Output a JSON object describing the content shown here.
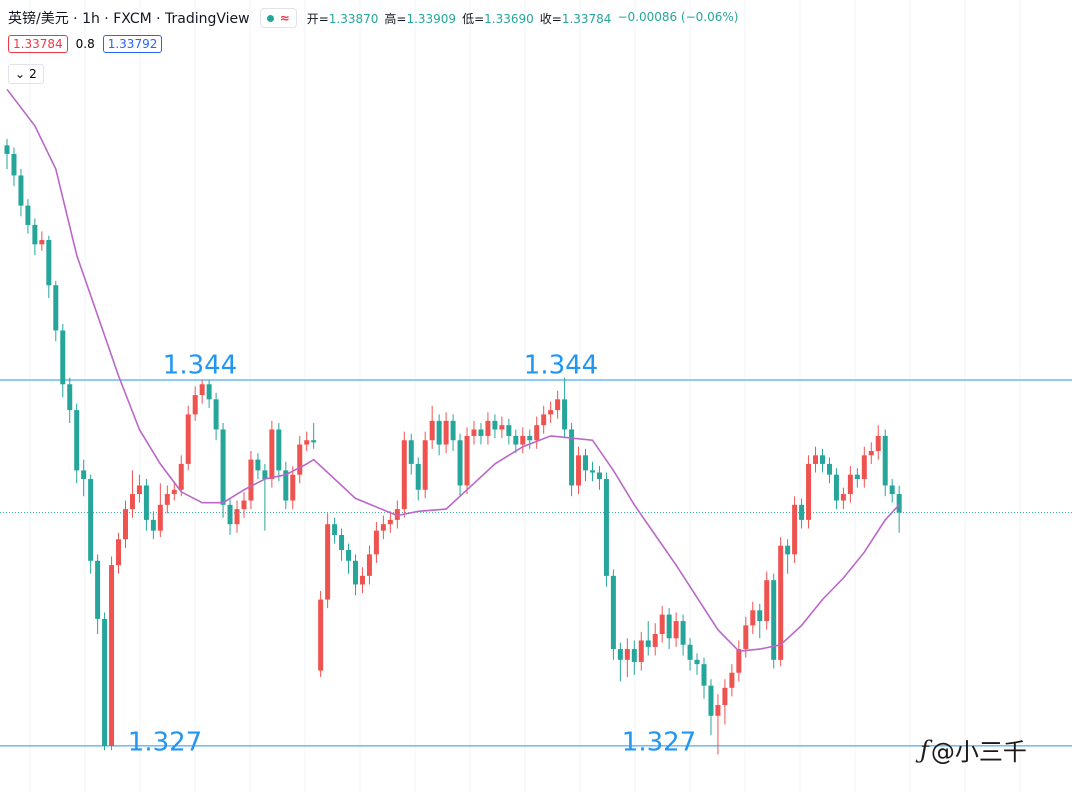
{
  "chart_data": {
    "type": "candlestick",
    "title": "英镑/美元 · 1h · FXCM · TradingView",
    "ohlc_legend": [
      {
        "label": "开=",
        "value": "1.33870"
      },
      {
        "label": "高=",
        "value": "1.33909"
      },
      {
        "label": "低=",
        "value": "1.33690"
      },
      {
        "label": "收=",
        "value": "1.33784"
      },
      {
        "label": "",
        "value": "−0.00086 (−0.06%)"
      }
    ],
    "bid": "1.33784",
    "spread": "0.8",
    "ask": "1.33792",
    "indicator_count": "2",
    "watermark": "@小三千",
    "up_color": "#ef5350",
    "down_color": "#26a69a",
    "ma_color": "#ba68c8",
    "level_color": "#2196f3",
    "ylim": [
      1.32486,
      1.36165
    ],
    "candles": [
      [
        1.3549,
        1.3552,
        1.3538,
        1.3545
      ],
      [
        1.3545,
        1.3548,
        1.353,
        1.3535
      ],
      [
        1.3535,
        1.3538,
        1.3516,
        1.3521
      ],
      [
        1.3521,
        1.3524,
        1.3508,
        1.3512
      ],
      [
        1.3512,
        1.3515,
        1.3498,
        1.3503
      ],
      [
        1.3503,
        1.3509,
        1.35,
        1.3505
      ],
      [
        1.3505,
        1.3507,
        1.3478,
        1.3484
      ],
      [
        1.3484,
        1.3486,
        1.3458,
        1.3463
      ],
      [
        1.3463,
        1.3466,
        1.3432,
        1.3438
      ],
      [
        1.3438,
        1.3441,
        1.342,
        1.3426
      ],
      [
        1.3426,
        1.3429,
        1.3392,
        1.3398
      ],
      [
        1.3398,
        1.3403,
        1.3386,
        1.3394
      ],
      [
        1.3394,
        1.3396,
        1.335,
        1.3356
      ],
      [
        1.3356,
        1.3359,
        1.3322,
        1.3329
      ],
      [
        1.3329,
        1.3332,
        1.3268,
        1.327
      ],
      [
        1.327,
        1.3358,
        1.3268,
        1.3354
      ],
      [
        1.3354,
        1.3369,
        1.335,
        1.3366
      ],
      [
        1.3366,
        1.3384,
        1.3362,
        1.338
      ],
      [
        1.338,
        1.3398,
        1.3376,
        1.3387
      ],
      [
        1.3387,
        1.3396,
        1.3383,
        1.3391
      ],
      [
        1.3391,
        1.3394,
        1.337,
        1.3375
      ],
      [
        1.3375,
        1.3379,
        1.3366,
        1.337
      ],
      [
        1.337,
        1.3392,
        1.3367,
        1.3382
      ],
      [
        1.3382,
        1.3391,
        1.3378,
        1.3387
      ],
      [
        1.3387,
        1.3393,
        1.3384,
        1.3389
      ],
      [
        1.3389,
        1.3405,
        1.3386,
        1.3401
      ],
      [
        1.3401,
        1.3428,
        1.3398,
        1.3424
      ],
      [
        1.3424,
        1.3437,
        1.3421,
        1.3433
      ],
      [
        1.3433,
        1.344,
        1.3429,
        1.3438
      ],
      [
        1.3438,
        1.344,
        1.3427,
        1.3431
      ],
      [
        1.3431,
        1.3434,
        1.3412,
        1.3417
      ],
      [
        1.3417,
        1.342,
        1.3376,
        1.3382
      ],
      [
        1.3382,
        1.3385,
        1.3368,
        1.3373
      ],
      [
        1.3373,
        1.3384,
        1.3369,
        1.338
      ],
      [
        1.338,
        1.3388,
        1.3376,
        1.3384
      ],
      [
        1.3384,
        1.3407,
        1.338,
        1.3403
      ],
      [
        1.3403,
        1.3406,
        1.3394,
        1.3398
      ],
      [
        1.3398,
        1.3401,
        1.337,
        1.3394
      ],
      [
        1.3394,
        1.3421,
        1.339,
        1.3417
      ],
      [
        1.3417,
        1.342,
        1.3393,
        1.3398
      ],
      [
        1.3398,
        1.3402,
        1.338,
        1.3384
      ],
      [
        1.3384,
        1.34,
        1.338,
        1.3396
      ],
      [
        1.3396,
        1.3414,
        1.3392,
        1.341
      ],
      [
        1.341,
        1.3416,
        1.3407,
        1.3412
      ],
      [
        1.3412,
        1.342,
        1.3408,
        1.3411
      ],
      [
        1.3305,
        1.3342,
        1.3302,
        1.3338
      ],
      [
        1.3338,
        1.3378,
        1.3334,
        1.3373
      ],
      [
        1.3373,
        1.3376,
        1.3364,
        1.3368
      ],
      [
        1.3368,
        1.3371,
        1.3356,
        1.3361
      ],
      [
        1.3361,
        1.3364,
        1.335,
        1.3356
      ],
      [
        1.3356,
        1.3359,
        1.334,
        1.3345
      ],
      [
        1.3345,
        1.3353,
        1.3341,
        1.3349
      ],
      [
        1.3349,
        1.3363,
        1.3345,
        1.3359
      ],
      [
        1.3359,
        1.3374,
        1.3355,
        1.337
      ],
      [
        1.337,
        1.3377,
        1.3366,
        1.3373
      ],
      [
        1.3373,
        1.3379,
        1.3369,
        1.3375
      ],
      [
        1.3375,
        1.3384,
        1.3371,
        1.338
      ],
      [
        1.338,
        1.3416,
        1.3376,
        1.3412
      ],
      [
        1.3412,
        1.3415,
        1.3396,
        1.3401
      ],
      [
        1.3401,
        1.3404,
        1.3384,
        1.3389
      ],
      [
        1.3389,
        1.3416,
        1.3385,
        1.3412
      ],
      [
        1.3412,
        1.3428,
        1.3408,
        1.3421
      ],
      [
        1.3421,
        1.3424,
        1.3405,
        1.341
      ],
      [
        1.341,
        1.3425,
        1.3406,
        1.3421
      ],
      [
        1.3421,
        1.3424,
        1.3407,
        1.3412
      ],
      [
        1.3412,
        1.3415,
        1.3386,
        1.3391
      ],
      [
        1.3391,
        1.3418,
        1.3387,
        1.3414
      ],
      [
        1.3414,
        1.3421,
        1.341,
        1.3417
      ],
      [
        1.3417,
        1.342,
        1.341,
        1.3414
      ],
      [
        1.3414,
        1.3425,
        1.341,
        1.3421
      ],
      [
        1.3421,
        1.3424,
        1.3413,
        1.3417
      ],
      [
        1.3417,
        1.3423,
        1.3413,
        1.3419
      ],
      [
        1.3419,
        1.3422,
        1.341,
        1.3414
      ],
      [
        1.3414,
        1.3417,
        1.3406,
        1.341
      ],
      [
        1.341,
        1.3418,
        1.3406,
        1.3414
      ],
      [
        1.3414,
        1.3417,
        1.3408,
        1.3412
      ],
      [
        1.3412,
        1.3423,
        1.3408,
        1.3419
      ],
      [
        1.3419,
        1.3428,
        1.3415,
        1.3424
      ],
      [
        1.3424,
        1.343,
        1.342,
        1.3426
      ],
      [
        1.3426,
        1.3435,
        1.3422,
        1.3431
      ],
      [
        1.3431,
        1.3441,
        1.3413,
        1.3417
      ],
      [
        1.3417,
        1.342,
        1.3386,
        1.3391
      ],
      [
        1.3391,
        1.3409,
        1.3387,
        1.3405
      ],
      [
        1.3405,
        1.3408,
        1.3393,
        1.3398
      ],
      [
        1.3398,
        1.3402,
        1.3393,
        1.3397
      ],
      [
        1.3397,
        1.34,
        1.3389,
        1.3394
      ],
      [
        1.3394,
        1.3397,
        1.3344,
        1.3349
      ],
      [
        1.3349,
        1.3352,
        1.331,
        1.3315
      ],
      [
        1.3315,
        1.3318,
        1.33,
        1.331
      ],
      [
        1.331,
        1.332,
        1.3302,
        1.3315
      ],
      [
        1.3315,
        1.3319,
        1.3303,
        1.3309
      ],
      [
        1.3309,
        1.3323,
        1.3305,
        1.3319
      ],
      [
        1.3319,
        1.3328,
        1.3312,
        1.3316
      ],
      [
        1.3316,
        1.3327,
        1.3312,
        1.3322
      ],
      [
        1.3322,
        1.3335,
        1.3318,
        1.3331
      ],
      [
        1.3331,
        1.3334,
        1.3315,
        1.332
      ],
      [
        1.332,
        1.3332,
        1.3316,
        1.3328
      ],
      [
        1.3328,
        1.3331,
        1.3312,
        1.3317
      ],
      [
        1.3317,
        1.332,
        1.3305,
        1.331
      ],
      [
        1.331,
        1.3313,
        1.3303,
        1.3308
      ],
      [
        1.3308,
        1.3311,
        1.3292,
        1.3298
      ],
      [
        1.3298,
        1.3301,
        1.3275,
        1.3284
      ],
      [
        1.3284,
        1.3294,
        1.3266,
        1.3289
      ],
      [
        1.3289,
        1.3301,
        1.328,
        1.3297
      ],
      [
        1.3297,
        1.3308,
        1.3293,
        1.3304
      ],
      [
        1.3304,
        1.3319,
        1.33,
        1.3315
      ],
      [
        1.3315,
        1.333,
        1.3311,
        1.3326
      ],
      [
        1.3326,
        1.3337,
        1.3322,
        1.3333
      ],
      [
        1.3333,
        1.3336,
        1.332,
        1.3328
      ],
      [
        1.3328,
        1.3351,
        1.3324,
        1.3347
      ],
      [
        1.3347,
        1.335,
        1.3306,
        1.331
      ],
      [
        1.331,
        1.3367,
        1.3307,
        1.3363
      ],
      [
        1.3363,
        1.3366,
        1.335,
        1.3359
      ],
      [
        1.3359,
        1.3386,
        1.3355,
        1.3382
      ],
      [
        1.3382,
        1.3385,
        1.3371,
        1.3375
      ],
      [
        1.3375,
        1.3405,
        1.3371,
        1.3401
      ],
      [
        1.3401,
        1.3409,
        1.3397,
        1.3405
      ],
      [
        1.3405,
        1.3408,
        1.3397,
        1.3401
      ],
      [
        1.3401,
        1.3404,
        1.3392,
        1.3396
      ],
      [
        1.3396,
        1.3399,
        1.338,
        1.3384
      ],
      [
        1.3384,
        1.339,
        1.338,
        1.3387
      ],
      [
        1.3387,
        1.34,
        1.3383,
        1.3396
      ],
      [
        1.3396,
        1.3399,
        1.339,
        1.3394
      ],
      [
        1.3394,
        1.3409,
        1.339,
        1.3405
      ],
      [
        1.3405,
        1.3411,
        1.3401,
        1.3407
      ],
      [
        1.3407,
        1.3419,
        1.3403,
        1.3414
      ],
      [
        1.3414,
        1.3417,
        1.3386,
        1.3391
      ],
      [
        1.3391,
        1.3394,
        1.3383,
        1.3387
      ],
      [
        1.3387,
        1.33909,
        1.3369,
        1.33784
      ]
    ],
    "ma": {
      "x": [
        0,
        4,
        7,
        10,
        13,
        16,
        19,
        22,
        25,
        28,
        31,
        34,
        37,
        40,
        43,
        44,
        47,
        50,
        53,
        56,
        59,
        63,
        66,
        70,
        74,
        78,
        81,
        84,
        87,
        90,
        93,
        96,
        99,
        102,
        105,
        108,
        111,
        114,
        117,
        120,
        123,
        126,
        128
      ],
      "values": [
        1.3575,
        1.3558,
        1.3538,
        1.3498,
        1.347,
        1.3442,
        1.3417,
        1.3401,
        1.3388,
        1.3383,
        1.3383,
        1.3389,
        1.3394,
        1.3396,
        1.3401,
        1.3403,
        1.3394,
        1.3385,
        1.3381,
        1.3377,
        1.3379,
        1.338,
        1.3389,
        1.3401,
        1.3409,
        1.3414,
        1.3413,
        1.3412,
        1.3398,
        1.3382,
        1.3368,
        1.3354,
        1.3339,
        1.3324,
        1.3314,
        1.3315,
        1.3317,
        1.3326,
        1.3338,
        1.3348,
        1.336,
        1.3375,
        1.3382
      ]
    },
    "levels": [
      {
        "value": 1.344,
        "labels": [
          "1.344",
          "1.344"
        ]
      },
      {
        "value": 1.327,
        "labels": [
          "1.327",
          "1.327"
        ]
      }
    ]
  }
}
